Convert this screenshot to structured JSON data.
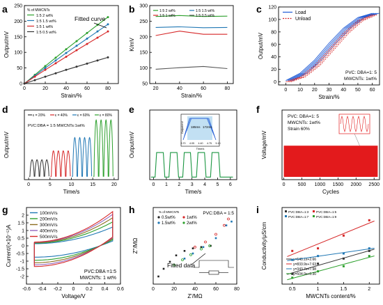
{
  "chart_data": [
    {
      "id": "a",
      "type": "line",
      "panel_label": "a",
      "xlabel": "Strain/%",
      "ylabel": "Output/mV",
      "xlim": [
        0,
        90
      ],
      "ylim": [
        0,
        250
      ],
      "xticks": [
        0,
        20,
        40,
        60,
        80
      ],
      "yticks": [
        0,
        50,
        100,
        150,
        200,
        250
      ],
      "legend_title": "% of MWCNTs",
      "annotation": "Fitted curve",
      "x": [
        0,
        10,
        20,
        30,
        40,
        50,
        60,
        70,
        80
      ],
      "series": [
        {
          "name": "1:5  2 wt%",
          "color": "#2ca02c",
          "values": [
            0,
            28,
            56,
            83,
            110,
            136,
            162,
            188,
            213
          ]
        },
        {
          "name": "1:5  1.5 wt%",
          "color": "#1f77b4",
          "values": [
            0,
            25,
            50,
            74,
            98,
            121,
            144,
            167,
            190
          ]
        },
        {
          "name": "1:5  1 wt%",
          "color": "#d62728",
          "values": [
            0,
            22,
            44,
            65,
            86,
            107,
            127,
            147,
            167
          ]
        },
        {
          "name": "1:5  0.5 wt%",
          "color": "#333333",
          "values": [
            0,
            11,
            22,
            33,
            44,
            54,
            64,
            74,
            84
          ]
        }
      ]
    },
    {
      "id": "b",
      "type": "line",
      "panel_label": "b",
      "xlabel": "Strain/%",
      "ylabel": "K/mV",
      "xlim": [
        15,
        85
      ],
      "ylim": [
        50,
        300
      ],
      "xticks": [
        20,
        40,
        60,
        80
      ],
      "yticks": [
        50,
        100,
        150,
        200,
        250,
        300
      ],
      "x": [
        20,
        40,
        60,
        80
      ],
      "series": [
        {
          "name": "1:5  2 wt%",
          "color": "#2ca02c",
          "values": [
            265,
            268,
            265,
            266
          ]
        },
        {
          "name": "1:5  1.5 wt%",
          "color": "#1f77b4",
          "values": [
            230,
            232,
            229,
            230
          ]
        },
        {
          "name": "1:5  1 wt%",
          "color": "#d62728",
          "values": [
            204,
            218,
            208,
            208
          ]
        },
        {
          "name": "1:5  0.5 wt%",
          "color": "#555555",
          "values": [
            96,
            101,
            105,
            98
          ]
        }
      ]
    },
    {
      "id": "c",
      "type": "line",
      "panel_label": "c",
      "xlabel": "Strain/%",
      "ylabel": "Output/mV",
      "xlim": [
        -5,
        65
      ],
      "ylim": [
        -5,
        120
      ],
      "xticks": [
        0,
        10,
        20,
        30,
        40,
        50,
        60
      ],
      "yticks": [
        0,
        20,
        40,
        60,
        80,
        100,
        120
      ],
      "legend": [
        "Load",
        "Unload"
      ],
      "note_lines": [
        "PVC: DBA=1: 5",
        "MWCNTs: 1wt%"
      ],
      "x": [
        0,
        10,
        20,
        30,
        40,
        50,
        60
      ],
      "series": [
        {
          "name": "Load",
          "color": "#1f5bd6",
          "values": [
            2,
            14,
            35,
            62,
            86,
            103,
            110
          ]
        },
        {
          "name": "Unload",
          "color": "#d62728",
          "values": [
            0,
            8,
            26,
            52,
            78,
            98,
            108
          ]
        }
      ]
    },
    {
      "id": "d",
      "type": "line",
      "panel_label": "d",
      "xlabel": "Time/s",
      "ylabel": "Output/mV",
      "xlim": [
        -1,
        21
      ],
      "ylim": [
        -10,
        200
      ],
      "xticks": [
        0,
        5,
        10,
        15,
        20
      ],
      "yticks": [],
      "note": "PVC:DBA = 1:5   MWCNTs:1wt%",
      "groups": [
        {
          "name": "ε = 20%",
          "color": "#333333",
          "start": 0.3,
          "peak": 50
        },
        {
          "name": "ε = 40%",
          "color": "#d62728",
          "start": 5.3,
          "peak": 77
        },
        {
          "name": "ε = 60%",
          "color": "#1f77b4",
          "start": 10.3,
          "peak": 117
        },
        {
          "name": "ε = 80%",
          "color": "#2ca02c",
          "start": 15.3,
          "peak": 170
        }
      ]
    },
    {
      "id": "e",
      "type": "line",
      "panel_label": "e",
      "xlabel": "Time/s",
      "ylabel": "Output/mV",
      "xlim": [
        -0.3,
        6.5
      ],
      "ylim": [
        -10,
        260
      ],
      "xticks": [
        0,
        1,
        2,
        3,
        4,
        5,
        6
      ],
      "yticks": [],
      "pulses": [
        [
          0.12,
          0.88
        ],
        [
          1.2,
          1.95
        ],
        [
          2.28,
          3.0
        ],
        [
          3.35,
          4.1
        ],
        [
          4.45,
          5.2
        ]
      ],
      "peak": 95,
      "inset": {
        "xlabel": "Time/s",
        "ylabel": "Output/mV",
        "xticks": [
          "3.70",
          "4.05",
          "4.40",
          "4.75",
          "5.10"
        ],
        "labels": [
          "185ms",
          "172ms"
        ]
      }
    },
    {
      "id": "f",
      "type": "line",
      "panel_label": "f",
      "xlabel": "Cycles",
      "ylabel": "Voltage/mV",
      "xlim": [
        -50,
        2650
      ],
      "ylim": [
        -10,
        240
      ],
      "xticks": [
        0,
        500,
        1000,
        1500,
        2000,
        2500
      ],
      "yticks": [],
      "band": [
        0,
        112
      ],
      "note_lines": [
        "PVC: DBA=1: 5",
        "MWCNTs: 1wt%",
        "Strain 60%"
      ]
    },
    {
      "id": "g",
      "type": "line",
      "panel_label": "g",
      "xlabel": "Voltage/V",
      "ylabel": "Current/(×10⁻⁵)A",
      "xlim": [
        -0.6,
        0.6
      ],
      "ylim": [
        -2.5,
        2.5
      ],
      "xticks": [
        -0.6,
        -0.4,
        -0.2,
        0.0,
        0.2,
        0.4,
        0.6
      ],
      "yticks": [
        -2.0,
        -1.5,
        -1.0,
        -0.5,
        0.0,
        0.5,
        1.0,
        1.5,
        2.0
      ],
      "note_lines": [
        "PVC:DBA =1:5",
        "MWCNTs: 1 wt%"
      ],
      "series": [
        {
          "name": "100mV/s",
          "color": "#1f77b4",
          "scale": 0.55
        },
        {
          "name": "200mV/s",
          "color": "#2ca02c",
          "scale": 0.7
        },
        {
          "name": "300mV/s",
          "color": "#8c6d1f",
          "scale": 0.82
        },
        {
          "name": "400mV/s",
          "color": "#9467bd",
          "scale": 0.92
        },
        {
          "name": "500mV/s",
          "color": "#d62728",
          "scale": 1.0
        }
      ]
    },
    {
      "id": "h",
      "type": "scatter",
      "panel_label": "h",
      "xlabel": "Z'/MΩ",
      "ylabel": "Z''/MΩ",
      "xlim": [
        0,
        80
      ],
      "ylim": [
        0,
        120
      ],
      "xticks": [
        0,
        20,
        40,
        60,
        80
      ],
      "yticks": [],
      "legend_title": "% of MWCNTs",
      "note": "PVC:DBA = 1:5",
      "annotation": "Fitted data",
      "series": [
        {
          "name": "0.5wt%",
          "color": "#222222",
          "points": [
            [
              5,
              12
            ],
            [
              10,
              24
            ],
            [
              16,
              35
            ],
            [
              22,
              45
            ],
            [
              30,
              52
            ],
            [
              38,
              56
            ],
            [
              46,
              58
            ],
            [
              55,
              60
            ]
          ]
        },
        {
          "name": "1wt%",
          "color": "#d62728",
          "points": [
            [
              40,
              58
            ],
            [
              50,
              66
            ],
            [
              60,
              78
            ],
            [
              68,
              92
            ],
            [
              72,
              102
            ]
          ]
        },
        {
          "name": "1.5wt%",
          "color": "#1f77b4",
          "points": [
            [
              30,
              40
            ],
            [
              38,
              48
            ],
            [
              48,
              58
            ],
            [
              60,
              72
            ],
            [
              70,
              92
            ],
            [
              75,
              98
            ]
          ]
        },
        {
          "name": "2wt%",
          "color": "#2ca02c",
          "points": [
            [
              20,
              30
            ],
            [
              28,
              38
            ],
            [
              36,
              46
            ],
            [
              46,
              55
            ],
            [
              54,
              60
            ]
          ]
        }
      ]
    },
    {
      "id": "i",
      "type": "scatter",
      "panel_label": "i",
      "xlabel": "MWCNTs content/%",
      "ylabel": "Conductivity/μS/cm",
      "xlim": [
        0.3,
        2.2
      ],
      "ylim": [
        0,
        30
      ],
      "xticks": [
        0.5,
        1.0,
        1.5,
        2.0
      ],
      "yticks": [],
      "x": [
        0.5,
        1.0,
        1.5,
        2.0
      ],
      "series": [
        {
          "name": "PVC:DBA=1:3",
          "color": "#333333",
          "values": [
            4,
            8,
            10,
            13
          ]
        },
        {
          "name": "PVC:DBA=1:5",
          "color": "#d62728",
          "values": [
            13,
            14,
            19,
            25
          ]
        },
        {
          "name": "PVC:DBA=1:7",
          "color": "#1f77b4",
          "values": [
            9.5,
            11,
            12,
            14
          ]
        },
        {
          "name": "PVC:DBA=1:9",
          "color": "#2ca02c",
          "values": [
            2.5,
            5,
            7,
            11
          ]
        }
      ],
      "fit_equations": [
        "y=540.1x+2.66",
        "y=833.9x+7.63",
        "y=343.7x+7.98",
        "y=504.9x+0.30"
      ]
    }
  ]
}
